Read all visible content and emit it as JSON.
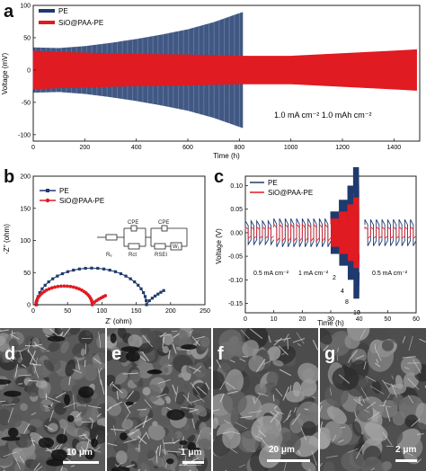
{
  "panels": {
    "a": {
      "letter": "a"
    },
    "b": {
      "letter": "b"
    },
    "c": {
      "letter": "c"
    },
    "d": {
      "letter": "d",
      "scale": "10 μm"
    },
    "e": {
      "letter": "e",
      "scale": "1 μm"
    },
    "f": {
      "letter": "f",
      "scale": "20 μm"
    },
    "g": {
      "letter": "g",
      "scale": "2 μm"
    }
  },
  "colors": {
    "pe": "#1f3a6e",
    "sio": "#e01b22"
  },
  "chart_data": [
    {
      "type": "line",
      "panel": "a",
      "xlabel": "Time (h)",
      "ylabel": "Voltage (mV)",
      "xlim": [
        0,
        1500
      ],
      "ylim": [
        -110,
        100
      ],
      "xticks": [
        0,
        200,
        400,
        600,
        800,
        1000,
        1200,
        1400
      ],
      "yticks": [
        -100,
        -50,
        0,
        50,
        100
      ],
      "legend": "top-left",
      "annotation": "1.0 mA cm⁻² 1.0 mAh cm⁻²",
      "series": [
        {
          "name": "PE",
          "x": [
            0,
            100,
            200,
            300,
            400,
            500,
            600,
            700,
            800,
            815
          ],
          "amplitude": [
            35,
            34,
            37,
            42,
            48,
            55,
            63,
            74,
            88,
            90
          ]
        },
        {
          "name": "SiO@PAA-PE",
          "x": [
            0,
            100,
            200,
            400,
            600,
            800,
            1000,
            1200,
            1400,
            1490
          ],
          "amplitude": [
            30,
            28,
            27,
            25,
            24,
            22,
            22,
            26,
            30,
            32
          ]
        }
      ]
    },
    {
      "type": "scatter",
      "panel": "b",
      "xlabel": "Z' (ohm)",
      "ylabel": "-Z'' (ohm)",
      "xlim": [
        0,
        250
      ],
      "ylim": [
        0,
        200
      ],
      "xticks": [
        0,
        50,
        100,
        150,
        200,
        250
      ],
      "yticks": [
        0,
        50,
        100,
        150,
        200
      ],
      "legend": "top-left",
      "circuit_labels": [
        "CPE",
        "CPE",
        "Rₑ",
        "Rct",
        "RSEI",
        "W₁"
      ],
      "series": [
        {
          "name": "PE",
          "semicircle": {
            "start": 5,
            "end": 165,
            "height": 57
          },
          "tail_end": [
            190,
            22
          ]
        },
        {
          "name": "SiO@PAA-PE",
          "semicircle": {
            "start": 4,
            "end": 86,
            "height": 29
          },
          "tail_end": [
            105,
            14
          ]
        }
      ]
    },
    {
      "type": "line",
      "panel": "c",
      "xlabel": "Time (h)",
      "ylabel": "Voltage (V)",
      "xlim": [
        0,
        60
      ],
      "ylim": [
        -0.17,
        0.12
      ],
      "xticks": [
        0,
        10,
        20,
        30,
        40,
        50,
        60
      ],
      "yticks": [
        0.1,
        0.05,
        0.0,
        -0.05,
        -0.1,
        -0.15
      ],
      "legend": "top-left",
      "annotations": [
        "0.5 mA cm⁻²",
        "1 mA cm⁻²",
        "2",
        "4",
        "8",
        "10",
        "0.5 mA cm⁻²"
      ],
      "series": [
        {
          "name": "PE",
          "segments": [
            {
              "x": [
                0,
                10
              ],
              "amp": 0.025
            },
            {
              "x": [
                10,
                30
              ],
              "amp": 0.03
            },
            {
              "x": [
                30,
                33
              ],
              "amp": 0.045
            },
            {
              "x": [
                33,
                36
              ],
              "amp": 0.07
            },
            {
              "x": [
                36,
                38
              ],
              "amp": 0.1
            },
            {
              "x": [
                38,
                40
              ],
              "amp": 0.14
            },
            {
              "x": [
                42,
                60
              ],
              "amp": 0.028
            }
          ]
        },
        {
          "name": "SiO@PAA-PE",
          "segments": [
            {
              "x": [
                0,
                10
              ],
              "amp": 0.012
            },
            {
              "x": [
                10,
                30
              ],
              "amp": 0.018
            },
            {
              "x": [
                30,
                33
              ],
              "amp": 0.03
            },
            {
              "x": [
                33,
                36
              ],
              "amp": 0.045
            },
            {
              "x": [
                36,
                38
              ],
              "amp": 0.06
            },
            {
              "x": [
                38,
                40
              ],
              "amp": 0.075
            },
            {
              "x": [
                42,
                60
              ],
              "amp": 0.012
            }
          ]
        }
      ]
    }
  ]
}
